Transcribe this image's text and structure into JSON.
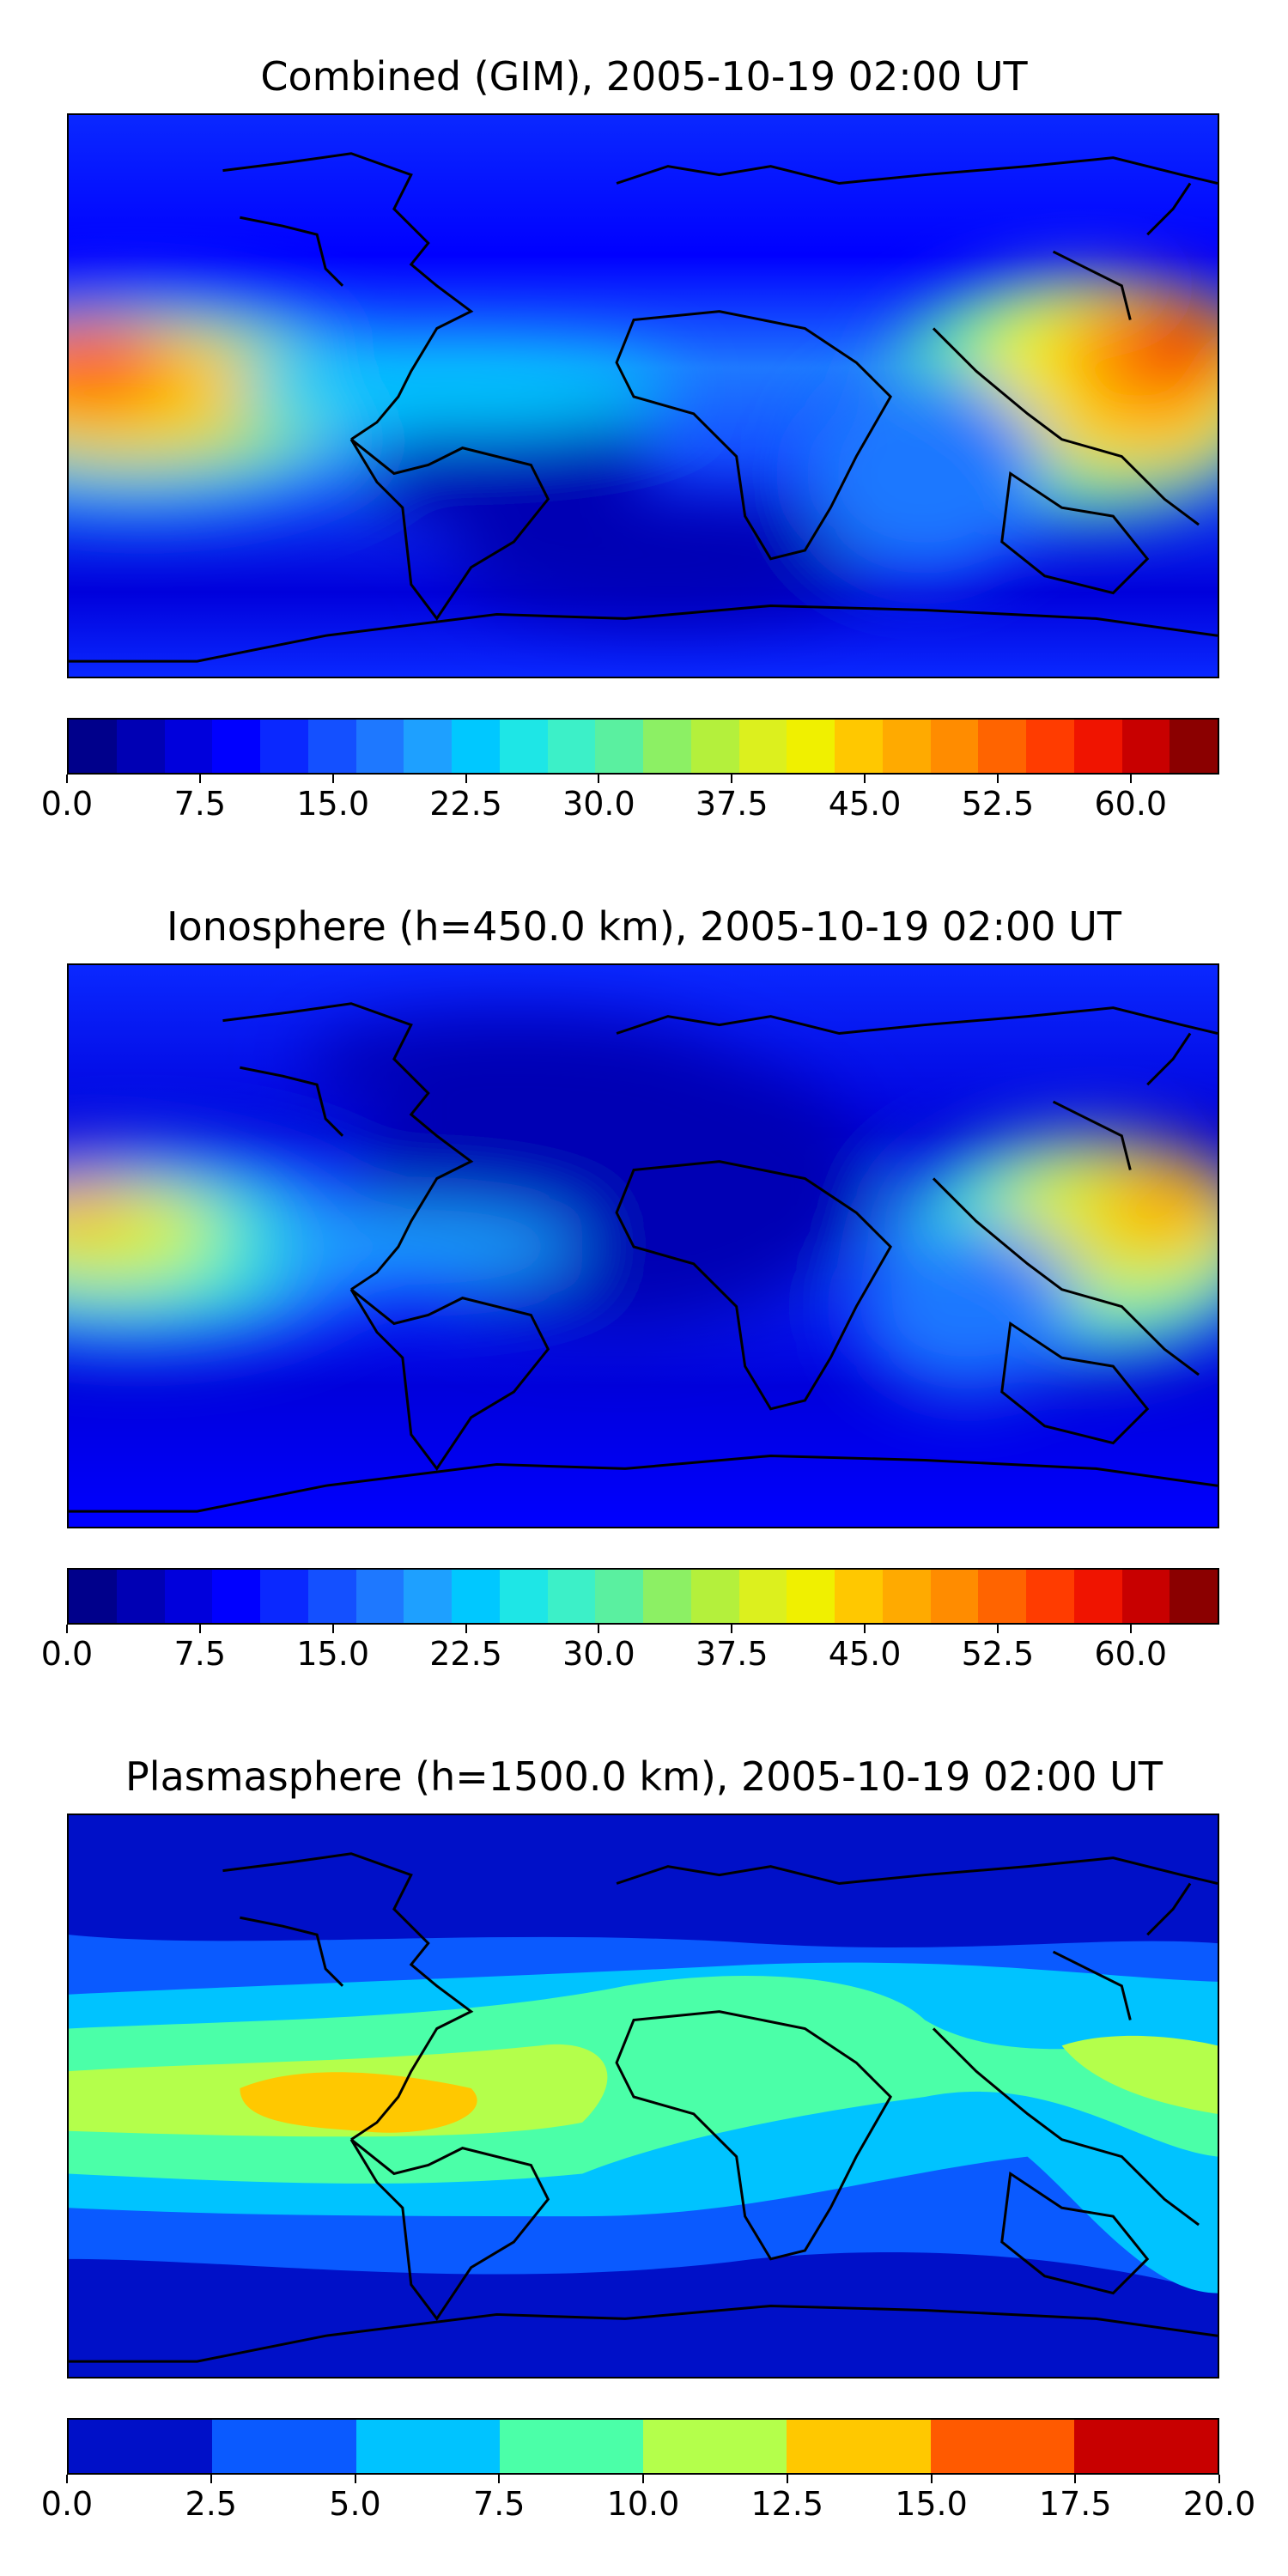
{
  "panels": [
    {
      "title": "Combined (GIM), 2005-10-19 02:00 UT",
      "scale": "fine",
      "tick_labels": [
        "0.0",
        "7.5",
        "15.0",
        "22.5",
        "30.0",
        "37.5",
        "45.0",
        "52.5",
        "60.0"
      ],
      "tick_values": [
        0,
        7.5,
        15,
        22.5,
        30,
        37.5,
        45,
        52.5,
        60
      ],
      "range": [
        0,
        65
      ],
      "colors": [
        "#00008b",
        "#0000b4",
        "#0000dc",
        "#0000ff",
        "#0a28ff",
        "#1450ff",
        "#1e78ff",
        "#1ea0ff",
        "#00c8ff",
        "#1ee6e6",
        "#3cf0c8",
        "#5af0a0",
        "#8cf064",
        "#b4f03c",
        "#dcf01e",
        "#f0f000",
        "#ffc800",
        "#ffaa00",
        "#ff8c00",
        "#ff6400",
        "#ff3c00",
        "#f01400",
        "#c80000",
        "#8b0000"
      ]
    },
    {
      "title": "Ionosphere  (h=450.0 km), 2005-10-19 02:00 UT",
      "scale": "fine",
      "tick_labels": [
        "0.0",
        "7.5",
        "15.0",
        "22.5",
        "30.0",
        "37.5",
        "45.0",
        "52.5",
        "60.0"
      ],
      "tick_values": [
        0,
        7.5,
        15,
        22.5,
        30,
        37.5,
        45,
        52.5,
        60
      ],
      "range": [
        0,
        65
      ],
      "colors": [
        "#00008b",
        "#0000b4",
        "#0000dc",
        "#0000ff",
        "#0a28ff",
        "#1450ff",
        "#1e78ff",
        "#1ea0ff",
        "#00c8ff",
        "#1ee6e6",
        "#3cf0c8",
        "#5af0a0",
        "#8cf064",
        "#b4f03c",
        "#dcf01e",
        "#f0f000",
        "#ffc800",
        "#ffaa00",
        "#ff8c00",
        "#ff6400",
        "#ff3c00",
        "#f01400",
        "#c80000",
        "#8b0000"
      ]
    },
    {
      "title": "Plasmasphere (h=1500.0 km), 2005-10-19 02:00 UT",
      "scale": "coarse",
      "tick_labels": [
        "0.0",
        "2.5",
        "5.0",
        "7.5",
        "10.0",
        "12.5",
        "15.0",
        "17.5",
        "20.0"
      ],
      "tick_values": [
        0,
        2.5,
        5,
        7.5,
        10,
        12.5,
        15,
        17.5,
        20
      ],
      "range": [
        0,
        20
      ],
      "colors": [
        "#0010c8",
        "#0a5aff",
        "#00c3ff",
        "#4bffa8",
        "#b4ff4b",
        "#ffc800",
        "#ff5a00",
        "#c80000"
      ]
    }
  ],
  "colors": {
    "coastline": "#000000",
    "deep": "#0000dc",
    "dark": "#00008b",
    "mid": "#0a28ff"
  }
}
